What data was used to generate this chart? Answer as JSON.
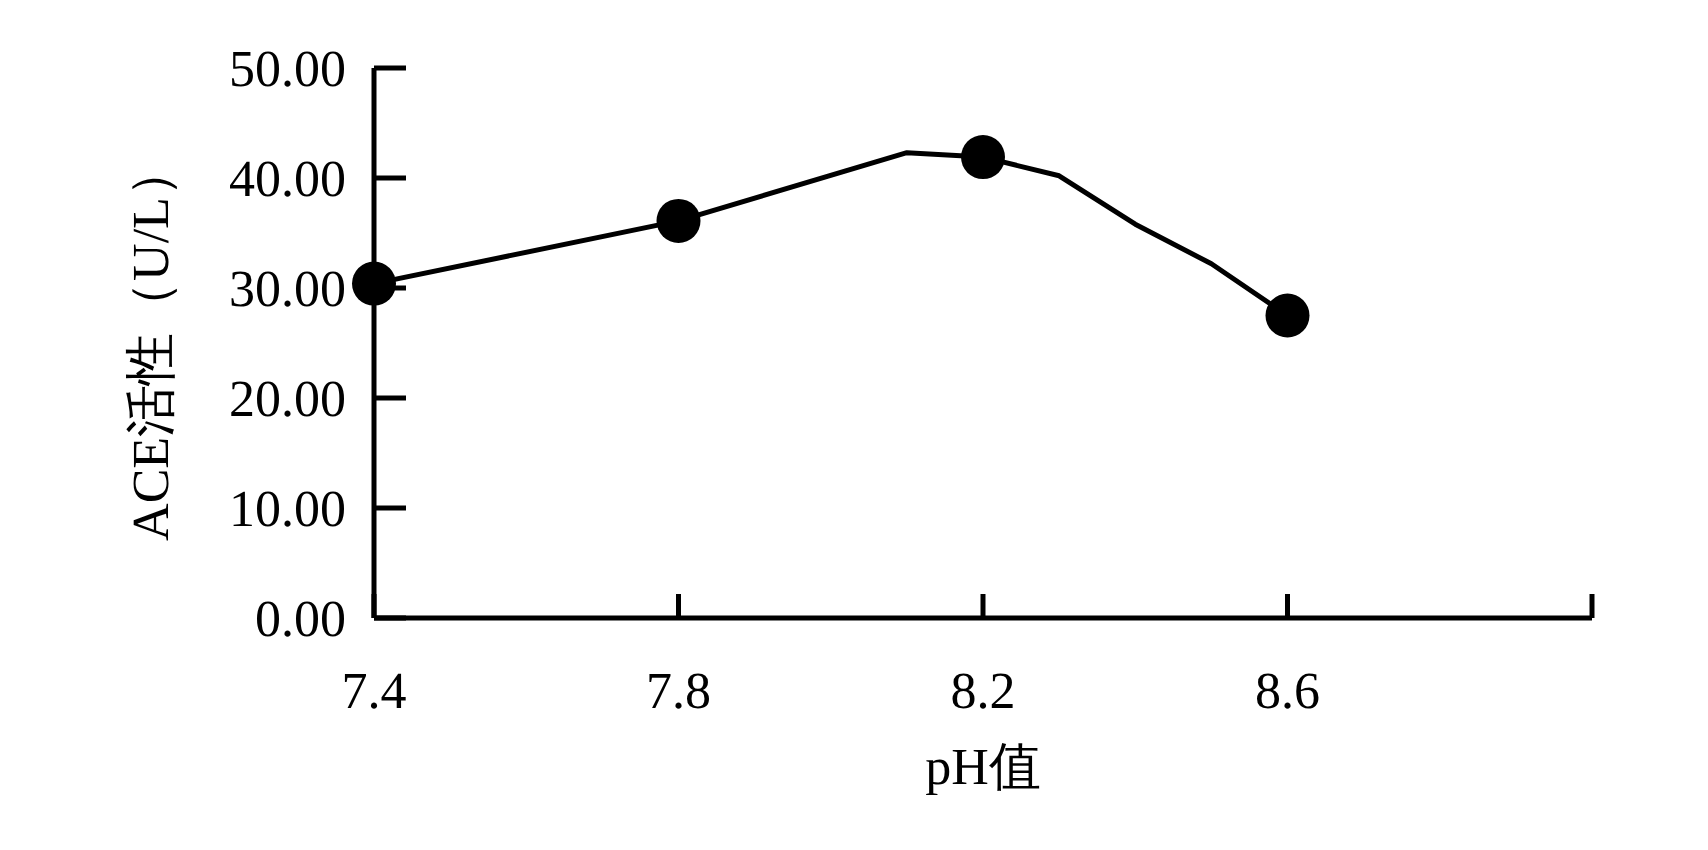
{
  "chart_data": {
    "type": "line",
    "xlabel": "pH值",
    "ylabel": "ACE活性（U/L）",
    "xlim": [
      7.4,
      9.0
    ],
    "xticks": [
      7.4,
      7.8,
      8.2,
      8.6,
      {
        "value": 9.0,
        "label": null
      }
    ],
    "ylim": [
      0,
      50
    ],
    "yticks": [
      {
        "value": 0,
        "label": "0.00"
      },
      {
        "value": 10,
        "label": "10.00"
      },
      {
        "value": 20,
        "label": "20.00"
      },
      {
        "value": 30,
        "label": "30.00"
      },
      {
        "value": 40,
        "label": "40.00"
      },
      {
        "value": 50,
        "label": "50.00"
      }
    ],
    "grid": false,
    "series": [
      {
        "type": "line",
        "color": "#000000",
        "marker": "none",
        "line_style": "solid",
        "x": [
          7.4,
          7.8,
          8.1,
          8.2,
          8.3,
          8.4,
          8.5,
          8.6
        ],
        "values": [
          30.4,
          36.1,
          42.3,
          41.9,
          40.2,
          35.8,
          32.2,
          27.5
        ]
      },
      {
        "type": "scatter",
        "color": "#000000",
        "marker": "circle",
        "x": [
          7.4,
          7.8,
          8.2,
          8.6
        ],
        "values": [
          30.4,
          36.1,
          41.9,
          27.5
        ]
      }
    ]
  }
}
